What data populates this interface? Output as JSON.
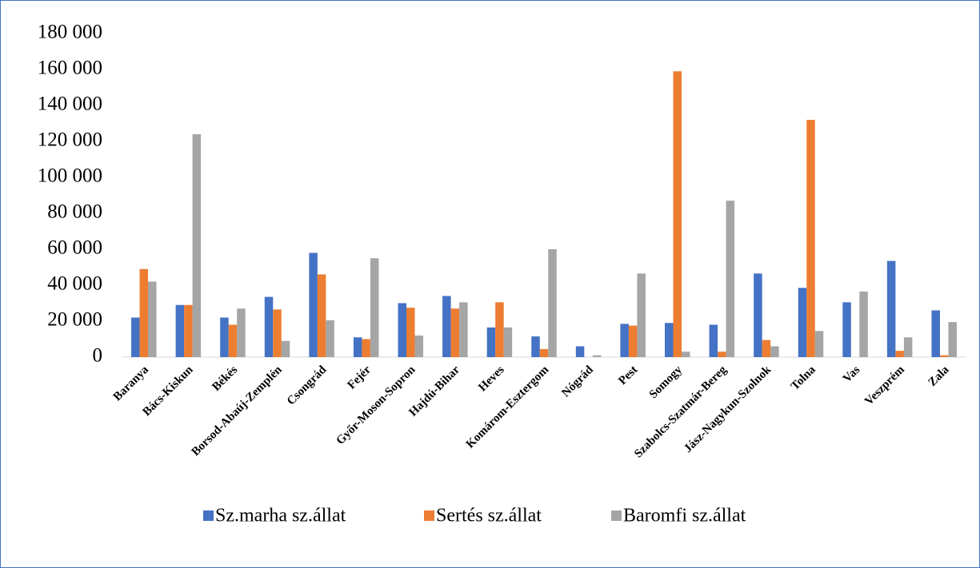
{
  "chart_data": {
    "type": "bar",
    "categories": [
      "Baranya",
      "Bács-Kiskun",
      "Békés",
      "Borsod-Abaúj-Zemplén",
      "Csongrád",
      "Fejér",
      "Győr-Moson-Sopron",
      "Hajdú-Bihar",
      "Heves",
      "Komárom-Esztergom",
      "Nógrád",
      "Pest",
      "Somogy",
      "Szabolcs-Szatmár-Bereg",
      "Jász-Nagykun-Szolnok",
      "Tolna",
      "Vas",
      "Veszprém",
      "Zala"
    ],
    "series": [
      {
        "name": "Sz.marha sz.állat",
        "color": "#4472c4",
        "values": [
          22000,
          29000,
          22000,
          33500,
          58000,
          11000,
          30000,
          34000,
          16500,
          11500,
          6000,
          18500,
          19000,
          18000,
          46500,
          38500,
          30500,
          53500,
          26000
        ]
      },
      {
        "name": "Sertés sz.állat",
        "color": "#ed7d31",
        "values": [
          49000,
          29000,
          18000,
          26500,
          46000,
          10000,
          27500,
          27000,
          30500,
          4500,
          0,
          17500,
          159000,
          3000,
          9500,
          132000,
          0,
          3500,
          1000
        ]
      },
      {
        "name": "Baromfi sz.állat",
        "color": "#a5a5a5",
        "values": [
          42000,
          124000,
          27000,
          9000,
          20500,
          55000,
          12000,
          30500,
          16500,
          60000,
          1000,
          46500,
          3000,
          87000,
          6000,
          14500,
          36500,
          11000,
          19500
        ]
      }
    ],
    "ylim": [
      0,
      180000
    ],
    "yticks": [
      0,
      {
        "value": 20000,
        "label": "20 000"
      },
      {
        "value": 40000,
        "label": "40 000"
      },
      {
        "value": 60000,
        "label": "60 000"
      },
      {
        "value": 80000,
        "label": "80 000"
      },
      {
        "value": 100000,
        "label": "100 000"
      },
      {
        "value": 120000,
        "label": "120 000"
      },
      {
        "value": 140000,
        "label": "140 000"
      },
      {
        "value": 160000,
        "label": "160 000"
      },
      {
        "value": 180000,
        "label": "180 000"
      }
    ],
    "grid": false,
    "legend": "bottom"
  }
}
